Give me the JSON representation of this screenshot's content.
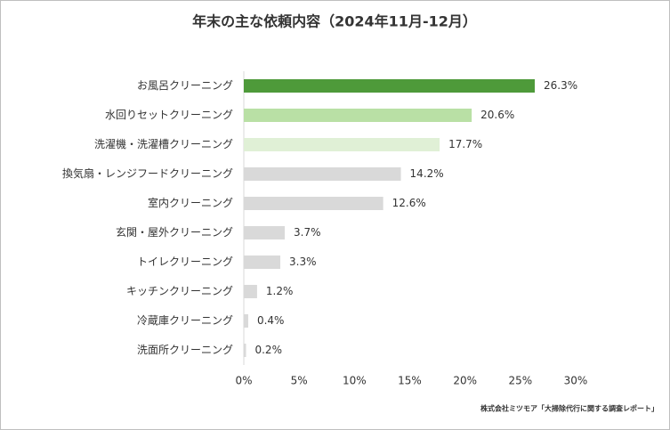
{
  "chart_data": {
    "type": "bar",
    "orientation": "horizontal",
    "title": "年末の主な依頼内容（2024年11月-12月）",
    "categories": [
      "お風呂クリーニング",
      "水回りセットクリーニング",
      "洗濯機・洗濯槽クリーニング",
      "換気扇・レンジフードクリーニング",
      "室内クリーニング",
      "玄関・屋外クリーニング",
      "トイレクリーニング",
      "キッチンクリーニング",
      "冷蔵庫クリーニング",
      "洗面所クリーニング"
    ],
    "values": [
      26.3,
      20.6,
      17.7,
      14.2,
      12.6,
      3.7,
      3.3,
      1.2,
      0.4,
      0.2
    ],
    "value_labels": [
      "26.3%",
      "20.6%",
      "17.7%",
      "14.2%",
      "12.6%",
      "3.7%",
      "3.3%",
      "1.2%",
      "0.4%",
      "0.2%"
    ],
    "colors": [
      "#4e9a3a",
      "#b9e0a5",
      "#e0f0d6",
      "#d9d9d9",
      "#d9d9d9",
      "#d9d9d9",
      "#d9d9d9",
      "#d9d9d9",
      "#d9d9d9",
      "#d9d9d9"
    ],
    "xlim": [
      0,
      30
    ],
    "xticks": [
      {
        "value": 0,
        "label": "0%"
      },
      {
        "value": 5,
        "label": "5%"
      },
      {
        "value": 10,
        "label": "10%"
      },
      {
        "value": 15,
        "label": "15%"
      },
      {
        "value": 20,
        "label": "20%"
      },
      {
        "value": 25,
        "label": "25%"
      },
      {
        "value": 30,
        "label": "30%"
      }
    ],
    "grid": false,
    "source": "株式会社ミツモア「大掃除代行に関する調査レポート」"
  }
}
